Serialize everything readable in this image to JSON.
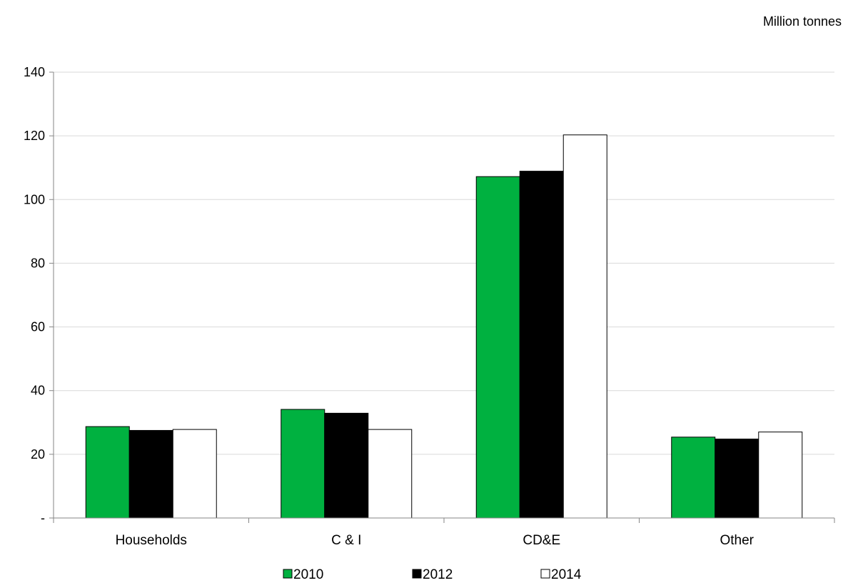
{
  "chart_data": {
    "type": "bar",
    "unit_label": "Million tonnes",
    "categories": [
      "Households",
      "C & I",
      "CD&E",
      "Other"
    ],
    "series": [
      {
        "name": "2010",
        "color": "#00B140",
        "values": [
          28.7,
          34.1,
          107.2,
          25.4
        ]
      },
      {
        "name": "2012",
        "color": "#000000",
        "values": [
          27.5,
          32.9,
          108.9,
          24.8
        ]
      },
      {
        "name": "2014",
        "color": "#FFFFFF",
        "values": [
          27.8,
          27.8,
          120.3,
          27.0
        ]
      }
    ],
    "ylim": [
      0,
      140
    ],
    "yticks": [
      0,
      20,
      40,
      60,
      80,
      100,
      120,
      140
    ],
    "ytick_labels": [
      "-",
      "20",
      "40",
      "60",
      "80",
      "100",
      "120",
      "140"
    ],
    "grid": true,
    "legend_position": "bottom"
  }
}
